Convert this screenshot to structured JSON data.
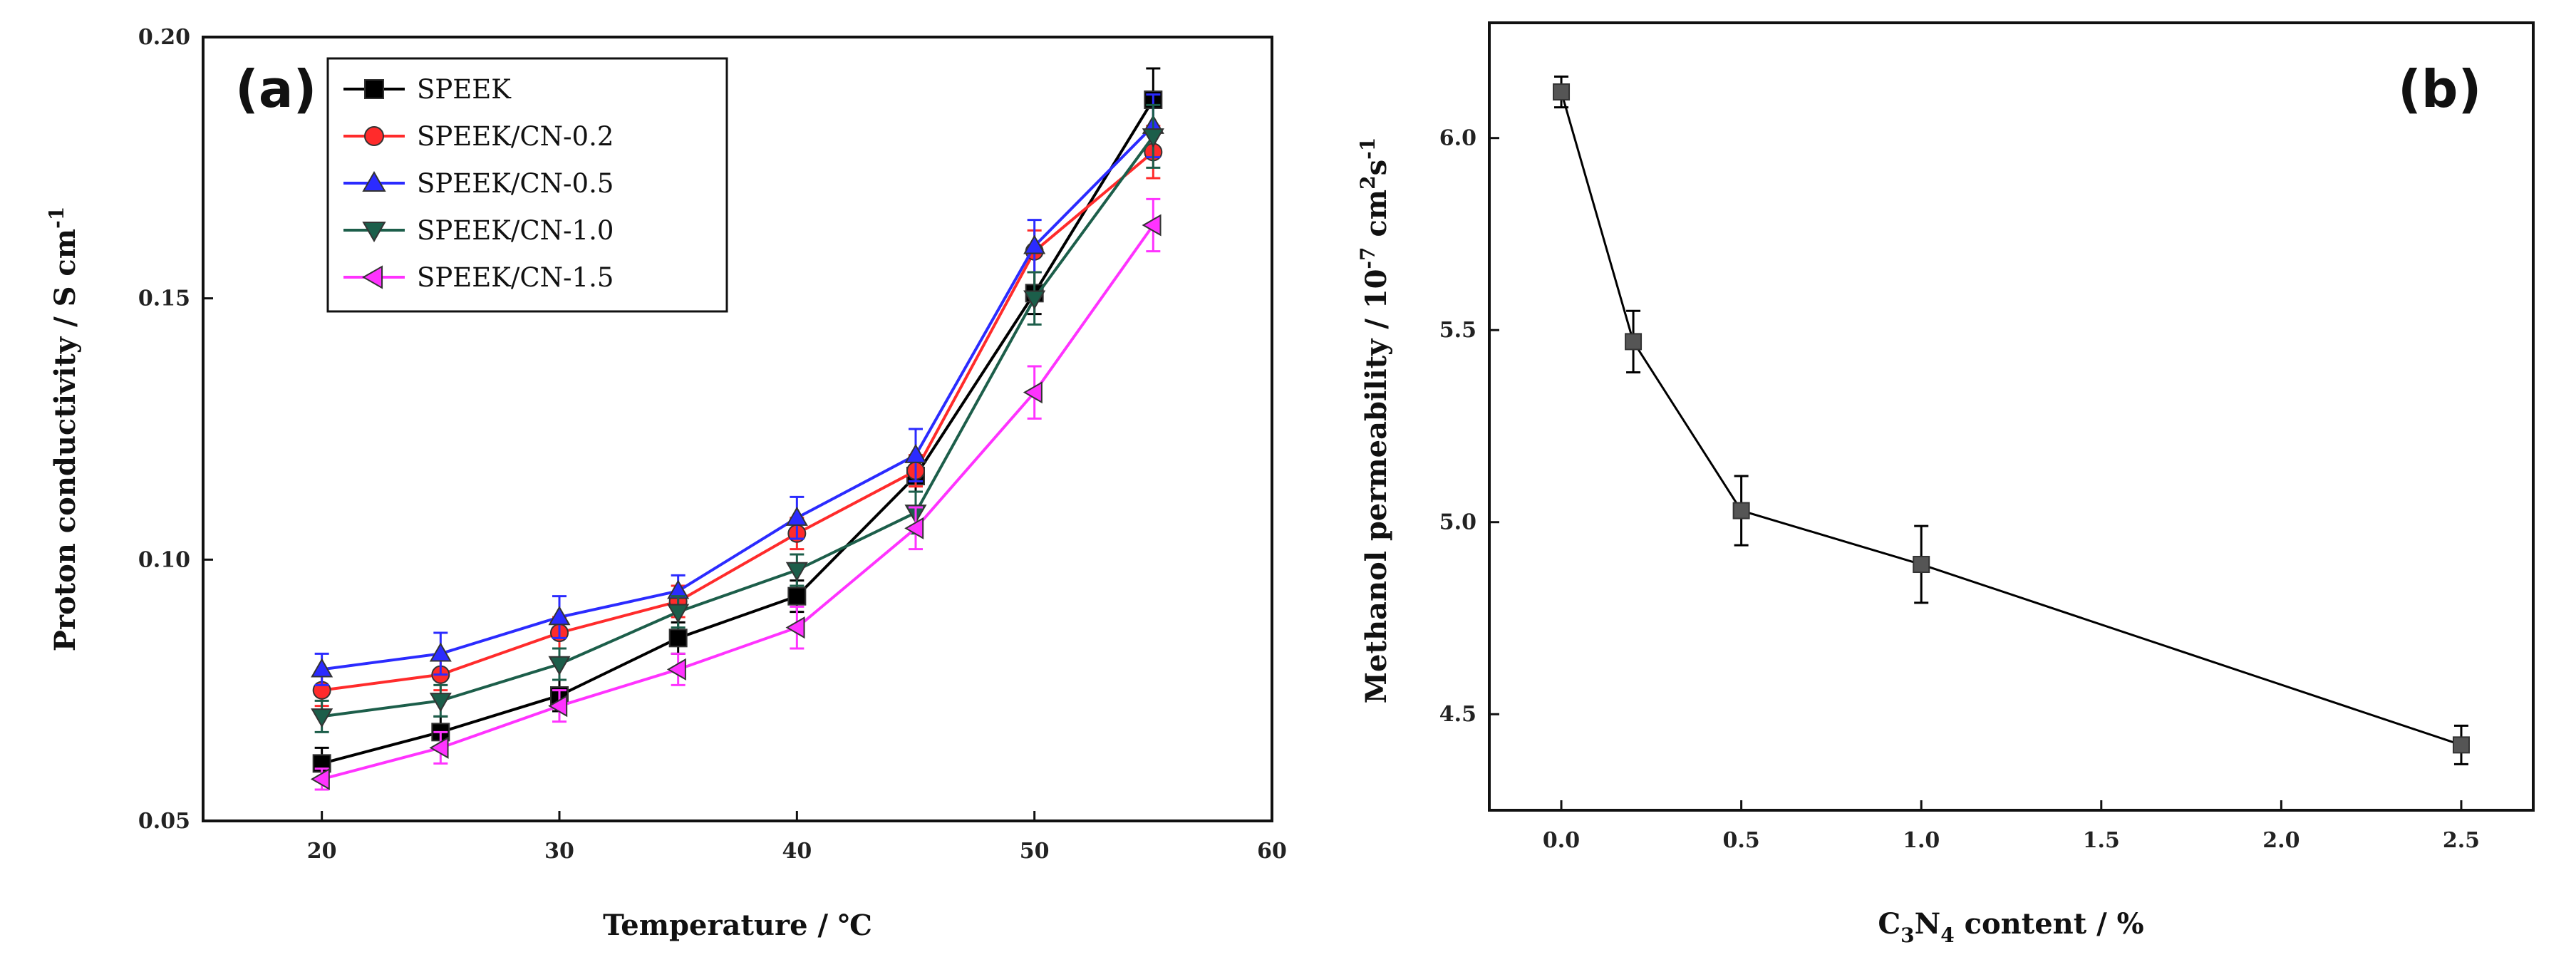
{
  "chart_data": [
    {
      "type": "line",
      "panel_label": "(a)",
      "xlabel": "Temperature / ℃",
      "ylabel": "Proton conductivity / S cm",
      "ylabel_exp": "-1",
      "xlim": [
        15,
        60
      ],
      "ylim": [
        0.05,
        0.2
      ],
      "x_ticks": [
        20,
        30,
        40,
        50,
        60
      ],
      "x_tick_labels": [
        "20",
        "30",
        "40",
        "50",
        "60"
      ],
      "y_ticks": [
        0.05,
        0.1,
        0.15,
        0.2
      ],
      "y_tick_labels": [
        "0.05",
        "0.10",
        "0.15",
        "0.20"
      ],
      "legend_position": "top-left",
      "x": [
        20,
        25,
        30,
        35,
        40,
        45,
        50,
        55
      ],
      "series": [
        {
          "name": "SPEEK",
          "color": "#000000",
          "marker": "square",
          "values": [
            0.061,
            0.067,
            0.074,
            0.085,
            0.093,
            0.116,
            0.151,
            0.188
          ],
          "errors": [
            0.003,
            0.003,
            0.003,
            0.003,
            0.003,
            0.003,
            0.004,
            0.006
          ]
        },
        {
          "name": "SPEEK/CN-0.2",
          "color": "#ff2b2b",
          "marker": "circle",
          "values": [
            0.075,
            0.078,
            0.086,
            0.092,
            0.105,
            0.117,
            0.159,
            0.178
          ],
          "errors": [
            0.003,
            0.003,
            0.003,
            0.003,
            0.003,
            0.003,
            0.004,
            0.005
          ]
        },
        {
          "name": "SPEEK/CN-0.5",
          "color": "#2b2bff",
          "marker": "triangle-up",
          "values": [
            0.079,
            0.082,
            0.089,
            0.094,
            0.108,
            0.12,
            0.16,
            0.183
          ],
          "errors": [
            0.003,
            0.004,
            0.004,
            0.003,
            0.004,
            0.005,
            0.005,
            0.006
          ]
        },
        {
          "name": "SPEEK/CN-1.0",
          "color": "#1c5e4a",
          "marker": "triangle-down",
          "values": [
            0.07,
            0.073,
            0.08,
            0.09,
            0.098,
            0.109,
            0.15,
            0.181
          ],
          "errors": [
            0.003,
            0.003,
            0.003,
            0.003,
            0.003,
            0.004,
            0.005,
            0.006
          ]
        },
        {
          "name": "SPEEK/CN-1.5",
          "color": "#ff33ff",
          "marker": "triangle-left",
          "values": [
            0.058,
            0.064,
            0.072,
            0.079,
            0.087,
            0.106,
            0.132,
            0.164
          ],
          "errors": [
            0.002,
            0.003,
            0.003,
            0.003,
            0.004,
            0.004,
            0.005,
            0.005
          ]
        }
      ]
    },
    {
      "type": "line",
      "panel_label": "(b)",
      "xlabel_parts": [
        "C",
        "3",
        "N",
        "4",
        " content / %"
      ],
      "ylabel": "Methanol permeability / 10",
      "ylabel_exp1": "-7",
      "ylabel_mid": " cm",
      "ylabel_exp2": "2",
      "ylabel_s": "s",
      "ylabel_exp3": "-1",
      "xlim": [
        -0.2,
        2.7
      ],
      "ylim": [
        4.25,
        6.3
      ],
      "x_ticks": [
        0.0,
        0.5,
        1.0,
        1.5,
        2.0,
        2.5
      ],
      "x_tick_labels": [
        "0.0",
        "0.5",
        "1.0",
        "1.5",
        "2.0",
        "2.5"
      ],
      "y_ticks": [
        4.5,
        5.0,
        5.5,
        6.0
      ],
      "y_tick_labels": [
        "4.5",
        "5.0",
        "5.5",
        "6.0"
      ],
      "series": [
        {
          "name": "Methanol permeability",
          "color": "#000000",
          "marker": "square",
          "x": [
            0.0,
            0.2,
            0.5,
            1.0,
            2.5
          ],
          "values": [
            6.12,
            5.47,
            5.03,
            4.89,
            4.42
          ],
          "errors": [
            0.04,
            0.08,
            0.09,
            0.1,
            0.05
          ]
        }
      ]
    }
  ]
}
